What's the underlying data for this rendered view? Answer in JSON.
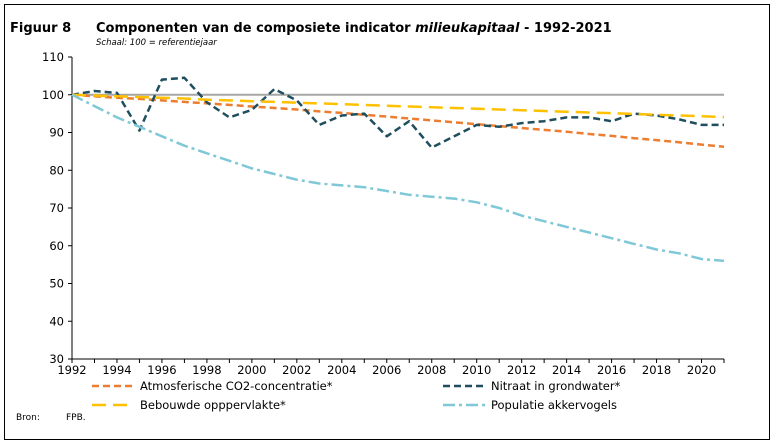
{
  "figure": {
    "label": "Figuur 8",
    "title_main": "Componenten van de composiete indicator ",
    "title_italic": "milieukapitaal",
    "title_end": " - 1992-2021",
    "subtitle": "Schaal: 100 = referentiejaar",
    "source_label": "Bron:",
    "source_value": "FPB."
  },
  "chart_data": {
    "type": "line",
    "title": "Componenten van de composiete indicator milieukapitaal - 1992-2021",
    "subtitle": "Schaal: 100 = referentiejaar",
    "xlabel": "",
    "ylabel": "",
    "xlim": [
      1992,
      2021
    ],
    "ylim": [
      30,
      110
    ],
    "x_ticks": [
      1992,
      1994,
      1996,
      1998,
      2000,
      2002,
      2004,
      2006,
      2008,
      2010,
      2012,
      2014,
      2016,
      2018,
      2020
    ],
    "y_ticks": [
      30,
      40,
      50,
      60,
      70,
      80,
      90,
      100,
      110
    ],
    "reference_line": {
      "y": 100,
      "color": "#a6a6a6"
    },
    "grid": false,
    "legend_position": "bottom",
    "x": [
      1992,
      1993,
      1994,
      1995,
      1996,
      1997,
      1998,
      1999,
      2000,
      2001,
      2002,
      2003,
      2004,
      2005,
      2006,
      2007,
      2008,
      2009,
      2010,
      2011,
      2012,
      2013,
      2014,
      2015,
      2016,
      2017,
      2018,
      2019,
      2020,
      2021
    ],
    "series": [
      {
        "name": "Atmosferische CO2-concentratie*",
        "color": "#ed7d31",
        "style": "dashed",
        "values": [
          100,
          99.6,
          99.2,
          98.9,
          98.5,
          98.1,
          97.7,
          97.3,
          96.9,
          96.5,
          96.1,
          95.6,
          95.2,
          94.7,
          94.2,
          93.7,
          93.2,
          92.7,
          92.2,
          91.7,
          91.2,
          90.7,
          90.2,
          89.6,
          89.1,
          88.5,
          88.0,
          87.4,
          86.8,
          86.2
        ]
      },
      {
        "name": "Nitraat in grondwater*",
        "color": "#1f4e5f",
        "style": "dashed",
        "values": [
          100,
          101,
          100.5,
          90.5,
          104,
          104.5,
          98,
          94,
          96,
          101.5,
          98.5,
          92,
          94.5,
          95,
          89,
          93,
          86,
          89,
          92,
          91.5,
          92.5,
          93,
          94,
          94,
          93,
          95,
          94.5,
          93.5,
          92,
          92
        ]
      },
      {
        "name": "Bebouwde opppervlakte*",
        "color": "#ffc000",
        "style": "longdash",
        "values": [
          100,
          99.8,
          99.6,
          99.4,
          99.2,
          99.0,
          98.7,
          98.5,
          98.3,
          98.1,
          97.9,
          97.7,
          97.5,
          97.3,
          97.1,
          96.9,
          96.7,
          96.5,
          96.3,
          96.1,
          95.9,
          95.7,
          95.5,
          95.3,
          95.1,
          94.9,
          94.7,
          94.5,
          94.3,
          94.1
        ]
      },
      {
        "name": "Populatie akkervogels",
        "color": "#7fc8d8",
        "style": "dashdot",
        "values": [
          100,
          97,
          94,
          91.5,
          89,
          86.5,
          84.5,
          82.5,
          80.5,
          79,
          77.5,
          76.5,
          76,
          75.5,
          74.5,
          73.5,
          73,
          72.5,
          71.5,
          70,
          68,
          66.5,
          65,
          63.5,
          62,
          60.5,
          59,
          58,
          56.5,
          56
        ]
      }
    ]
  }
}
